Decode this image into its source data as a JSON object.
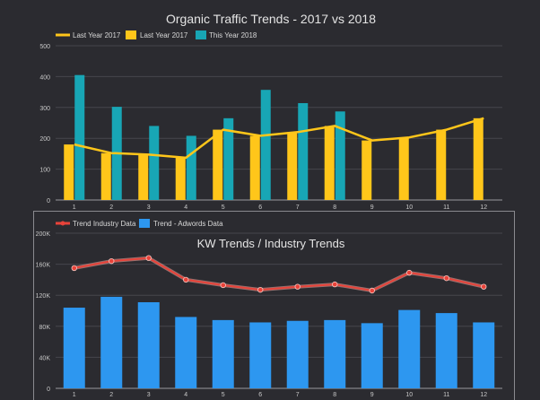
{
  "chart_data": [
    {
      "type": "bar",
      "title": "Organic Traffic Trends - 2017 vs 2018",
      "categories": [
        "1",
        "2",
        "3",
        "4",
        "5",
        "6",
        "7",
        "8",
        "9",
        "10",
        "11",
        "12"
      ],
      "ylim": [
        0,
        500
      ],
      "yticks": [
        "0",
        "100",
        "200",
        "300",
        "400",
        "500"
      ],
      "grid": true,
      "legend_placement": "top-left",
      "series": [
        {
          "name": "Last Year 2017",
          "type": "line",
          "color": "#ffc61a",
          "values": [
            180,
            152,
            147,
            137,
            228,
            208,
            220,
            240,
            193,
            203,
            228,
            265
          ]
        },
        {
          "name": "Last Year 2017",
          "type": "bar",
          "color": "#ffc61a",
          "values": [
            180,
            152,
            147,
            137,
            228,
            208,
            220,
            240,
            193,
            203,
            228,
            265
          ]
        },
        {
          "name": "This Year 2018",
          "type": "bar",
          "color": "#18a6b5",
          "values": [
            405,
            302,
            240,
            208,
            265,
            357,
            314,
            287,
            null,
            null,
            null,
            null
          ]
        }
      ]
    },
    {
      "type": "bar",
      "title": "KW Trends / Industry Trends",
      "categories": [
        "1",
        "2",
        "3",
        "4",
        "5",
        "6",
        "7",
        "8",
        "9",
        "10",
        "11",
        "12"
      ],
      "ylim": [
        0,
        200000
      ],
      "yticks": [
        "0",
        "40K",
        "80K",
        "120K",
        "160K",
        "200K"
      ],
      "grid": true,
      "legend_placement": "top-left",
      "series": [
        {
          "name": "Trend Industry Data",
          "type": "line",
          "color": "#e8433a",
          "values": [
            155000,
            164000,
            168000,
            140000,
            133000,
            127000,
            131000,
            134000,
            126000,
            149000,
            142000,
            131000
          ]
        },
        {
          "name": "Trend - Adwords Data",
          "type": "bar",
          "color": "#2d97f0",
          "values": [
            104000,
            118000,
            111000,
            92000,
            88000,
            85000,
            87000,
            88000,
            84000,
            101000,
            97000,
            85000
          ]
        }
      ]
    }
  ]
}
